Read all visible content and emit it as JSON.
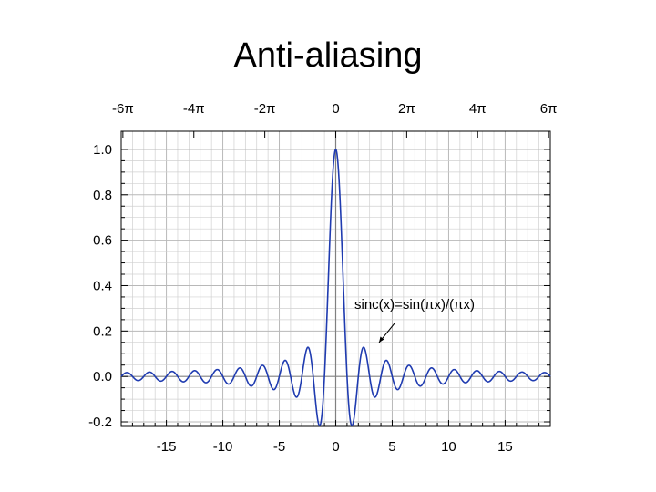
{
  "slide": {
    "title": "Anti-aliasing"
  },
  "chart_data": {
    "type": "line",
    "function": "sinc(x)=sin(πx)/(πx)",
    "annotation": "sinc(x)=sin(πx)/(πx)",
    "x_range": [
      -19,
      19
    ],
    "y_range": [
      -0.22,
      1.08
    ],
    "grid": true,
    "bottom_ticks": {
      "values": [
        -15,
        -10,
        -5,
        0,
        5,
        10,
        15
      ],
      "labels": [
        "-15",
        "-10",
        "-5",
        "0",
        "5",
        "10",
        "15"
      ]
    },
    "top_ticks": {
      "values": [
        -18.85,
        -12.566,
        -6.283,
        0,
        6.283,
        12.566,
        18.85
      ],
      "labels": [
        "-6π",
        "-4π",
        "-2π",
        "0",
        "2π",
        "4π",
        "6π"
      ]
    },
    "left_ticks": {
      "values": [
        1.0,
        0.8,
        0.6,
        0.4,
        0.2,
        0.0,
        -0.2
      ],
      "labels": [
        "1.0",
        "0.8",
        "0.6",
        "0.4",
        "0.2",
        "0.0",
        "-0.2"
      ]
    },
    "series": [
      {
        "color": "#1f3bb0"
      }
    ],
    "colors": {
      "curve": "#1f3bb0",
      "grid": "#d0d0d0",
      "axis_zero": "#808080",
      "frame": "#000000"
    }
  }
}
